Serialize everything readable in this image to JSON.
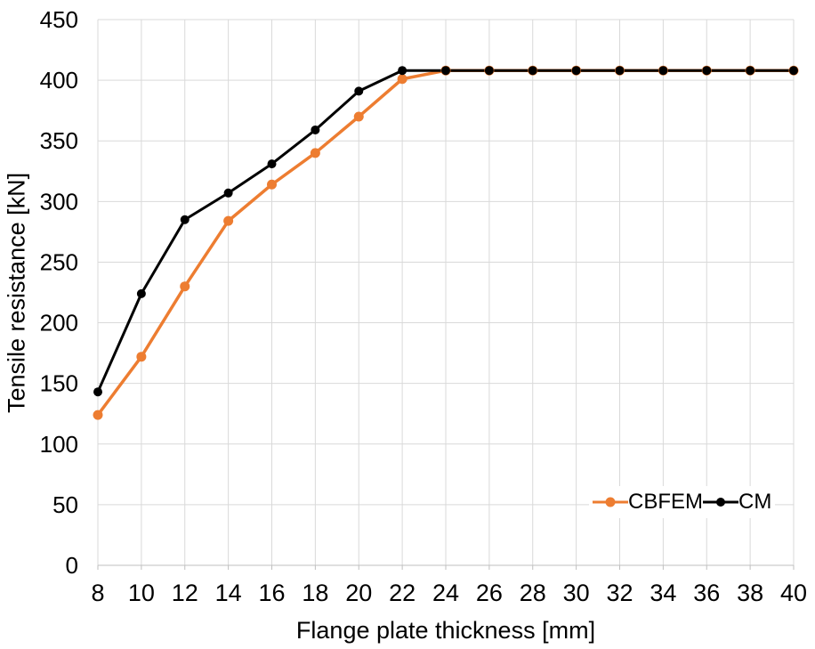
{
  "chart_data": {
    "type": "line",
    "title": "",
    "xlabel": "Flange plate thickness [mm]",
    "ylabel": "Tensile resistance [kN]",
    "x": [
      8,
      10,
      12,
      14,
      16,
      18,
      20,
      22,
      24,
      26,
      28,
      30,
      32,
      34,
      36,
      38,
      40
    ],
    "xlim": [
      8,
      40
    ],
    "x_tick_step": 2,
    "ylim": [
      0,
      450
    ],
    "y_tick_step": 50,
    "grid": true,
    "legend_position": "inside-bottom-right",
    "series": [
      {
        "name": "CBFEM",
        "color": "#ED7D31",
        "marker": "circle",
        "values": [
          124,
          172,
          230,
          284,
          314,
          340,
          370,
          401,
          408,
          408,
          408,
          408,
          408,
          408,
          408,
          408,
          408
        ]
      },
      {
        "name": "CM",
        "color": "#000000",
        "marker": "circle",
        "values": [
          143,
          224,
          285,
          307,
          331,
          359,
          391,
          408,
          408,
          408,
          408,
          408,
          408,
          408,
          408,
          408,
          408
        ]
      }
    ],
    "colors": {
      "gridline": "#D9D9D9",
      "axis": "#BFBFBF",
      "tick_text": "#000000"
    }
  }
}
